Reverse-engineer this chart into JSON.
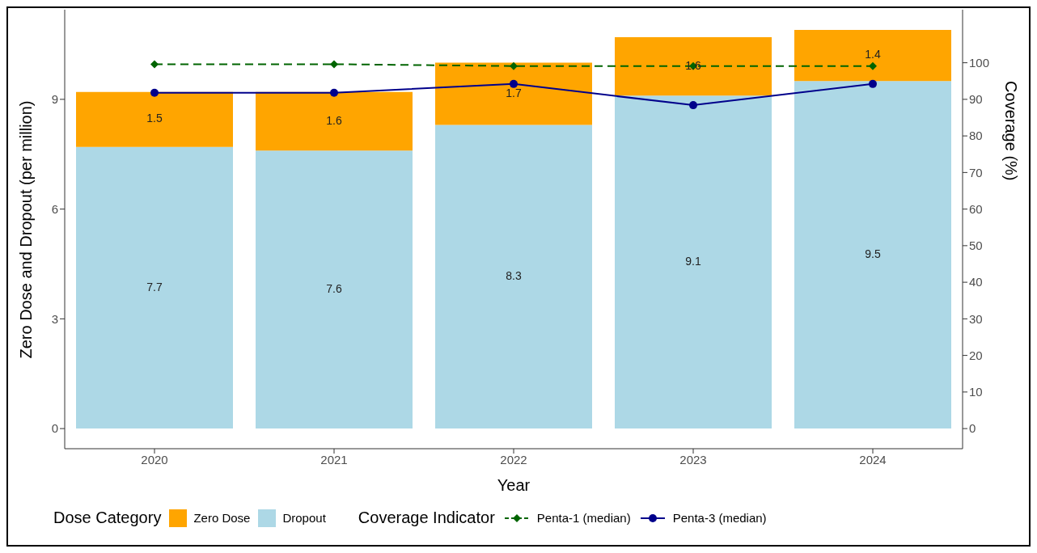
{
  "chart_data": {
    "type": "bar",
    "stacked": true,
    "xlabel": "Year",
    "ylabel": "Zero Dose and Dropout (per million)",
    "y2label": "Coverage (%)",
    "legend_title": [
      "Dose Category",
      "Coverage Indicator"
    ],
    "categories": [
      "2020",
      "2021",
      "2022",
      "2023",
      "2024"
    ],
    "series": [
      {
        "name": "Dropout",
        "color": "#add8e6",
        "values": [
          7.7,
          7.6,
          8.3,
          9.1,
          9.5
        ],
        "value_labels": [
          "7.7",
          "7.6",
          "8.3",
          "9.1",
          "9.5"
        ]
      },
      {
        "name": "Zero Dose",
        "color": "#ffa500",
        "values": [
          1.5,
          1.6,
          1.7,
          1.6,
          1.4
        ],
        "value_labels": [
          "1.5",
          "1.6",
          "1.7",
          "1.6",
          "1.4"
        ]
      },
      {
        "name": "Penta-1 (median)",
        "type": "line",
        "axis": "y2",
        "color": "#006400",
        "values": [
          99.6,
          99.6,
          99.1,
          99.1,
          99.1
        ],
        "marker": "diamond",
        "line_style": "dashed"
      },
      {
        "name": "Penta-3 (median)",
        "type": "line",
        "axis": "y2",
        "color": "#00008b",
        "values": [
          91.8,
          91.8,
          94.2,
          88.4,
          94.2
        ],
        "marker": "circle",
        "line_style": "solid"
      }
    ],
    "ylim": [
      -0.55,
      11.45
    ],
    "yticks": [
      0,
      3,
      6,
      9
    ],
    "y2lim": [
      -5.5,
      114.5
    ],
    "y2ticks": [
      0,
      10,
      20,
      30,
      40,
      50,
      60,
      70,
      80,
      90,
      100
    ],
    "legend": "bottom"
  }
}
